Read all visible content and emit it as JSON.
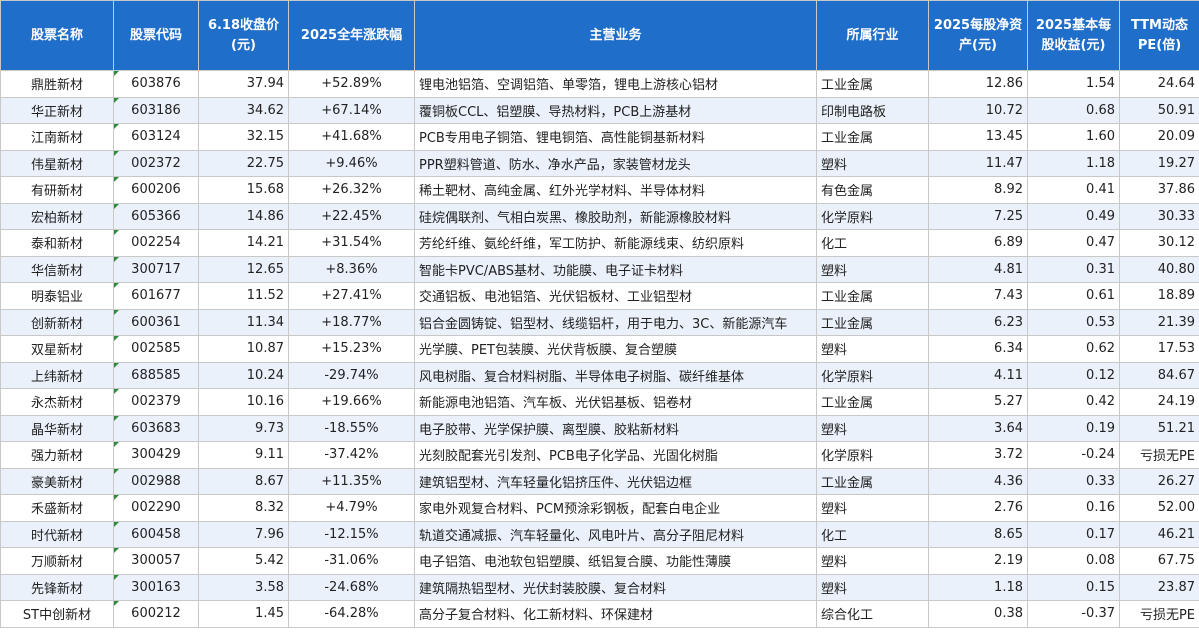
{
  "headers": [
    "股票名称",
    "股票代码",
    "6.18收盘价(元)",
    "2025全年涨跌幅",
    "主营业务",
    "所属行业",
    "2025每股净资产(元)",
    "2025基本每股收益(元)",
    "TTM动态PE(倍)"
  ],
  "rows": [
    [
      "鼎胜新材",
      "603876",
      "37.94",
      "+52.89%",
      "锂电池铝箔、空调铝箔、单零箔，锂电上游核心铝材",
      "工业金属",
      "12.86",
      "1.54",
      "24.64"
    ],
    [
      "华正新材",
      "603186",
      "34.62",
      "+67.14%",
      "覆铜板CCL、铝塑膜、导热材料，PCB上游基材",
      "印制电路板",
      "10.72",
      "0.68",
      "50.91"
    ],
    [
      "江南新材",
      "603124",
      "32.15",
      "+41.68%",
      "PCB专用电子铜箔、锂电铜箔、高性能铜基新材料",
      "工业金属",
      "13.45",
      "1.60",
      "20.09"
    ],
    [
      "伟星新材",
      "002372",
      "22.75",
      "+9.46%",
      "PPR塑料管道、防水、净水产品，家装管材龙头",
      "塑料",
      "11.47",
      "1.18",
      "19.27"
    ],
    [
      "有研新材",
      "600206",
      "15.68",
      "+26.32%",
      "稀土靶材、高纯金属、红外光学材料、半导体材料",
      "有色金属",
      "8.92",
      "0.41",
      "37.86"
    ],
    [
      "宏柏新材",
      "605366",
      "14.86",
      "+22.45%",
      "硅烷偶联剂、气相白炭黑、橡胶助剂，新能源橡胶材料",
      "化学原料",
      "7.25",
      "0.49",
      "30.33"
    ],
    [
      "泰和新材",
      "002254",
      "14.21",
      "+31.54%",
      "芳纶纤维、氨纶纤维，军工防护、新能源线束、纺织原料",
      "化工",
      "6.89",
      "0.47",
      "30.12"
    ],
    [
      "华信新材",
      "300717",
      "12.65",
      "+8.36%",
      "智能卡PVC/ABS基材、功能膜、电子证卡材料",
      "塑料",
      "4.81",
      "0.31",
      "40.80"
    ],
    [
      "明泰铝业",
      "601677",
      "11.52",
      "+27.41%",
      "交通铝板、电池铝箔、光伏铝板材、工业铝型材",
      "工业金属",
      "7.43",
      "0.61",
      "18.89"
    ],
    [
      "创新新材",
      "600361",
      "11.34",
      "+18.77%",
      "铝合金圆铸锭、铝型材、线缆铝杆，用于电力、3C、新能源汽车",
      "工业金属",
      "6.23",
      "0.53",
      "21.39"
    ],
    [
      "双星新材",
      "002585",
      "10.87",
      "+15.23%",
      "光学膜、PET包装膜、光伏背板膜、复合塑膜",
      "塑料",
      "6.34",
      "0.62",
      "17.53"
    ],
    [
      "上纬新材",
      "688585",
      "10.24",
      "-29.74%",
      "风电树脂、复合材料树脂、半导体电子树脂、碳纤维基体",
      "化学原料",
      "4.11",
      "0.12",
      "84.67"
    ],
    [
      "永杰新材",
      "002379",
      "10.16",
      "+19.66%",
      "新能源电池铝箔、汽车板、光伏铝基板、铝卷材",
      "工业金属",
      "5.27",
      "0.42",
      "24.19"
    ],
    [
      "晶华新材",
      "603683",
      "9.73",
      "-18.55%",
      "电子胶带、光学保护膜、离型膜、胶粘新材料",
      "塑料",
      "3.64",
      "0.19",
      "51.21"
    ],
    [
      "强力新材",
      "300429",
      "9.11",
      "-37.42%",
      "光刻胶配套光引发剂、PCB电子化学品、光固化树脂",
      "化学原料",
      "3.72",
      "-0.24",
      "亏损无PE"
    ],
    [
      "豪美新材",
      "002988",
      "8.67",
      "+11.35%",
      "建筑铝型材、汽车轻量化铝挤压件、光伏铝边框",
      "工业金属",
      "4.36",
      "0.33",
      "26.27"
    ],
    [
      "禾盛新材",
      "002290",
      "8.32",
      "+4.79%",
      "家电外观复合材料、PCM预涂彩钢板，配套白电企业",
      "塑料",
      "2.76",
      "0.16",
      "52.00"
    ],
    [
      "时代新材",
      "600458",
      "7.96",
      "-12.15%",
      "轨道交通减振、汽车轻量化、风电叶片、高分子阻尼材料",
      "化工",
      "8.65",
      "0.17",
      "46.21"
    ],
    [
      "万顺新材",
      "300057",
      "5.42",
      "-31.06%",
      "电子铝箔、电池软包铝塑膜、纸铝复合膜、功能性薄膜",
      "塑料",
      "2.19",
      "0.08",
      "67.75"
    ],
    [
      "先锋新材",
      "300163",
      "3.58",
      "-24.68%",
      "建筑隔热铝型材、光伏封装胶膜、复合材料",
      "塑料",
      "1.18",
      "0.15",
      "23.87"
    ],
    [
      "ST中创新材",
      "600212",
      "1.45",
      "-64.28%",
      "高分子复合材料、化工新材料、环保建材",
      "综合化工",
      "0.38",
      "-0.37",
      "亏损无PE"
    ]
  ]
}
